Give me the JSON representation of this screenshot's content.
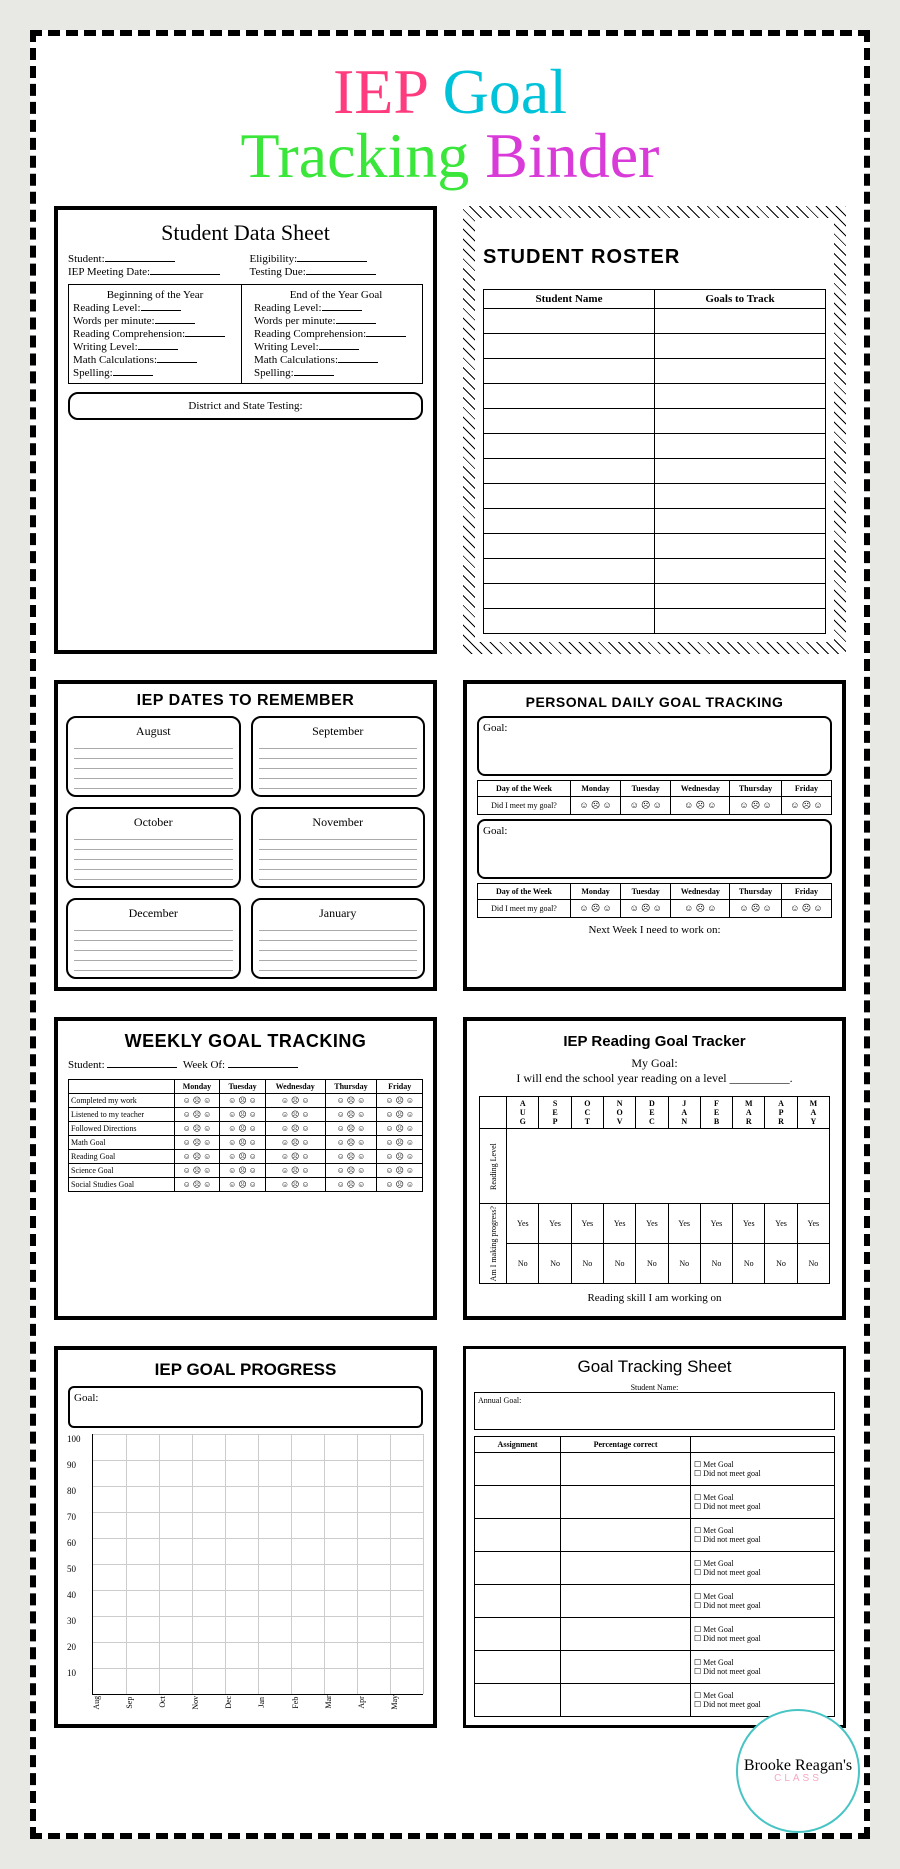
{
  "title_words": [
    "IEP",
    "Goal",
    "Tracking",
    "Binder"
  ],
  "title_colors": [
    "#ff3b7f",
    "#00c2d9",
    "#39e639",
    "#d93bd9"
  ],
  "cards": {
    "data_sheet": {
      "title": "Student Data Sheet",
      "fields_left": [
        "Student:",
        "IEP Meeting Date:"
      ],
      "fields_right": [
        "Eligibility:",
        "Testing Due:"
      ],
      "beg": "Beginning of the Year",
      "end": "End of the Year Goal",
      "rows": [
        "Reading Level:",
        "Words per minute:",
        "Reading Comprehension:",
        "Writing Level:",
        "Math Calculations:",
        "Spelling:"
      ],
      "footer": "District and State Testing:"
    },
    "roster": {
      "title": "STUDENT ROSTER",
      "cols": [
        "Student Name",
        "Goals to Track"
      ],
      "rows": 13
    },
    "dates": {
      "title": "IEP DATES TO REMEMBER",
      "months": [
        "August",
        "September",
        "October",
        "November",
        "December",
        "January"
      ]
    },
    "daily": {
      "title": "PERSONAL DAILY GOAL TRACKING",
      "goal_label": "Goal:",
      "day_row": [
        "Day of the Week",
        "Monday",
        "Tuesday",
        "Wednesday",
        "Thursday",
        "Friday"
      ],
      "meet": "Did I meet my goal?",
      "footer": "Next Week I need to work on:"
    },
    "weekly": {
      "title": "WEEKLY GOAL TRACKING",
      "student": "Student:",
      "week": "Week Of:",
      "days": [
        "Monday",
        "Tuesday",
        "Wednesday",
        "Thursday",
        "Friday"
      ],
      "rows": [
        "Completed my work",
        "Listened to my teacher",
        "Followed Directions",
        "Math Goal",
        "Reading Goal",
        "Science Goal",
        "Social Studies Goal"
      ]
    },
    "reading": {
      "title": "IEP Reading Goal Tracker",
      "my": "My Goal:",
      "line": "I will end the school year reading on a level __________.",
      "months": [
        "AUG",
        "SEP",
        "OCT",
        "NOV",
        "DEC",
        "JAN",
        "FEB",
        "MAR",
        "APR",
        "MAY"
      ],
      "side1": "Reading Level",
      "side2": "Am I making progress?",
      "yes": "Yes",
      "no": "No",
      "footer": "Reading skill I am working on"
    },
    "progress": {
      "title": "IEP GOAL PROGRESS",
      "goal": "Goal:",
      "y": [
        100,
        90,
        80,
        70,
        60,
        50,
        40,
        30,
        20,
        10
      ],
      "x": [
        "Aug",
        "Sep",
        "Oct",
        "Nov",
        "Dec",
        "Jan",
        "Feb",
        "Mar",
        "Apr",
        "May"
      ]
    },
    "sheet": {
      "title": "Goal Tracking Sheet",
      "sub": "Student Name:",
      "annual": "Annual Goal:",
      "cols": [
        "Assignment",
        "Percentage correct",
        ""
      ],
      "opts": [
        "Met Goal",
        "Did not meet goal"
      ],
      "rows": 8
    }
  },
  "brand": {
    "name": "Brooke Reagan's",
    "tag": "CLASS"
  }
}
